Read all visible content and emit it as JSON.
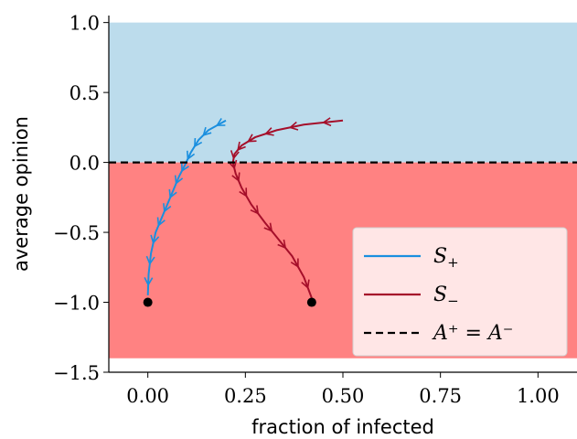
{
  "chart_data": {
    "type": "line",
    "xlabel": "fraction of infected",
    "ylabel": "average opinion",
    "xlim": [
      -0.1,
      1.1
    ],
    "ylim": [
      -1.5,
      1.05
    ],
    "x_ticks": [
      0.0,
      0.25,
      0.5,
      0.75,
      1.0
    ],
    "x_tick_labels": [
      "0.00",
      "0.25",
      "0.50",
      "0.75",
      "1.00"
    ],
    "y_ticks": [
      1.0,
      0.5,
      0.0,
      -0.5,
      -1.0,
      -1.5
    ],
    "y_tick_labels": [
      "1.0",
      "0.5",
      "0.0",
      "−0.5",
      "−1.0",
      "−1.5"
    ],
    "regions": [
      {
        "y_from": 0.0,
        "y_to": 1.0,
        "color": "#bcdcec"
      },
      {
        "y_from": -1.4,
        "y_to": 0.0,
        "color": "#ff8282"
      }
    ],
    "series": [
      {
        "name": "S+",
        "color": "#1a8fdf",
        "x": [
          0.0,
          0.002,
          0.008,
          0.02,
          0.035,
          0.05,
          0.065,
          0.08,
          0.095,
          0.11,
          0.13,
          0.155,
          0.2
        ],
        "y": [
          -0.95,
          -0.8,
          -0.65,
          -0.5,
          -0.4,
          -0.3,
          -0.2,
          -0.1,
          -0.02,
          0.07,
          0.16,
          0.23,
          0.3
        ]
      },
      {
        "name": "S−",
        "color": "#a50f2a",
        "x": [
          0.42,
          0.4,
          0.37,
          0.335,
          0.3,
          0.265,
          0.24,
          0.225,
          0.218,
          0.222,
          0.24,
          0.275,
          0.33,
          0.4,
          0.5
        ],
        "y": [
          -0.97,
          -0.82,
          -0.67,
          -0.55,
          -0.43,
          -0.3,
          -0.18,
          -0.08,
          0.0,
          0.06,
          0.12,
          0.18,
          0.23,
          0.27,
          0.3
        ]
      },
      {
        "name": "A⁺ = A⁻",
        "color": "#000000",
        "dashed": true,
        "x": [
          -0.1,
          1.1
        ],
        "y": [
          0.0,
          0.0
        ]
      }
    ],
    "start_points": [
      {
        "x": 0.0,
        "y": -1.0
      },
      {
        "x": 0.42,
        "y": -1.0
      }
    ],
    "legend": {
      "location": "lower-right",
      "entries": [
        {
          "label_main": "S",
          "label_sub": "+",
          "color": "#1a8fdf",
          "style": "solid"
        },
        {
          "label_main": "S",
          "label_sub": "−",
          "color": "#a50f2a",
          "style": "solid"
        },
        {
          "label_text": "A⁺ = A⁻",
          "color": "#000000",
          "style": "dashed"
        }
      ]
    }
  }
}
